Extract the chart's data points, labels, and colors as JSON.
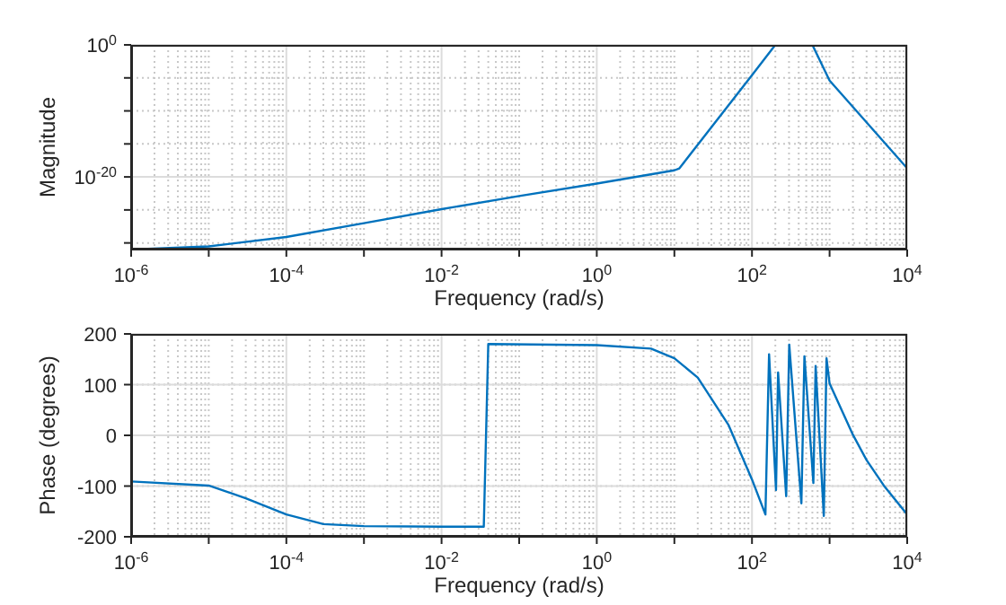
{
  "chart_data": [
    {
      "type": "line",
      "xlabel": "Frequency (rad/s)",
      "ylabel": "Magnitude",
      "log": "xy",
      "grid": true,
      "x": [
        1e-06,
        1e-05,
        0.0001,
        0.001,
        0.01,
        0.1,
        1,
        10,
        11.6,
        100,
        200,
        600,
        1000,
        10000
      ],
      "series": [
        {
          "color": "#0072bd",
          "values": [
            1e-31,
            3e-31,
            8e-30,
            1e-27,
            1.3e-25,
            1.3e-23,
            1e-21,
            1e-19,
            2e-19,
            2.5e-05,
            1,
            1,
            4e-06,
            2e-19
          ]
        }
      ],
      "xlim": [
        1e-06,
        10000.0
      ],
      "xticks": [
        {
          "value": 1e-06,
          "label": "10$^{-6}$"
        },
        {
          "value": 1e-05,
          "label": null
        },
        {
          "value": 0.0001,
          "label": "10$^{-4}$"
        },
        {
          "value": 0.001,
          "label": null
        },
        {
          "value": 0.01,
          "label": "10$^{-2}$"
        },
        {
          "value": 0.1,
          "label": null
        },
        {
          "value": 1,
          "label": "10$^{0}$"
        },
        {
          "value": 10,
          "label": null
        },
        {
          "value": 100,
          "label": "10$^{2}$"
        },
        {
          "value": 1000,
          "label": null
        },
        {
          "value": 10000,
          "label": "10$^{4}$"
        }
      ],
      "ylim": [
        1e-31,
        1
      ],
      "yticks": [
        {
          "value": 1e-30,
          "label": null
        },
        {
          "value": 1e-25,
          "label": null
        },
        {
          "value": 1e-20,
          "label": "10$^{-20}$"
        },
        {
          "value": 1e-15,
          "label": null
        },
        {
          "value": 1e-10,
          "label": null
        },
        {
          "value": 1e-05,
          "label": null
        },
        {
          "value": 1,
          "label": "10$^{0}$"
        }
      ]
    },
    {
      "type": "line",
      "xlabel": "Frequency (rad/s)",
      "ylabel": "Phase (degrees)",
      "log": "x",
      "grid": true,
      "x": [
        1e-06,
        1e-05,
        3e-05,
        0.0001,
        0.0003,
        0.001,
        0.01,
        0.035,
        0.04,
        1,
        5,
        10,
        20,
        50,
        100,
        149,
        166,
        204,
        217,
        276,
        302,
        433,
        474,
        618,
        661,
        842,
        913,
        1000,
        2000,
        3000,
        5000,
        10000
      ],
      "series": [
        {
          "color": "#0072bd",
          "values": [
            -91,
            -99,
            -124,
            -156,
            -175,
            -179,
            -180,
            -180,
            180,
            178,
            171,
            152,
            114,
            20,
            -87,
            -156,
            160,
            -108,
            124,
            -120,
            179,
            -134,
            156,
            -94,
            137,
            -159,
            152,
            102,
            1,
            -49,
            -99,
            -156
          ]
        }
      ],
      "xlim": [
        1e-06,
        10000.0
      ],
      "xticks": [
        {
          "value": 1e-06,
          "label": "10$^{-6}$"
        },
        {
          "value": 1e-05,
          "label": null
        },
        {
          "value": 0.0001,
          "label": "10$^{-4}$"
        },
        {
          "value": 0.001,
          "label": null
        },
        {
          "value": 0.01,
          "label": "10$^{-2}$"
        },
        {
          "value": 0.1,
          "label": null
        },
        {
          "value": 1,
          "label": "10$^{0}$"
        },
        {
          "value": 10,
          "label": null
        },
        {
          "value": 100,
          "label": "10$^{2}$"
        },
        {
          "value": 1000,
          "label": null
        },
        {
          "value": 10000,
          "label": "10$^{4}$"
        }
      ],
      "ylim": [
        -200,
        200
      ],
      "yticks": [
        -200,
        -100,
        0,
        100,
        200
      ]
    }
  ]
}
